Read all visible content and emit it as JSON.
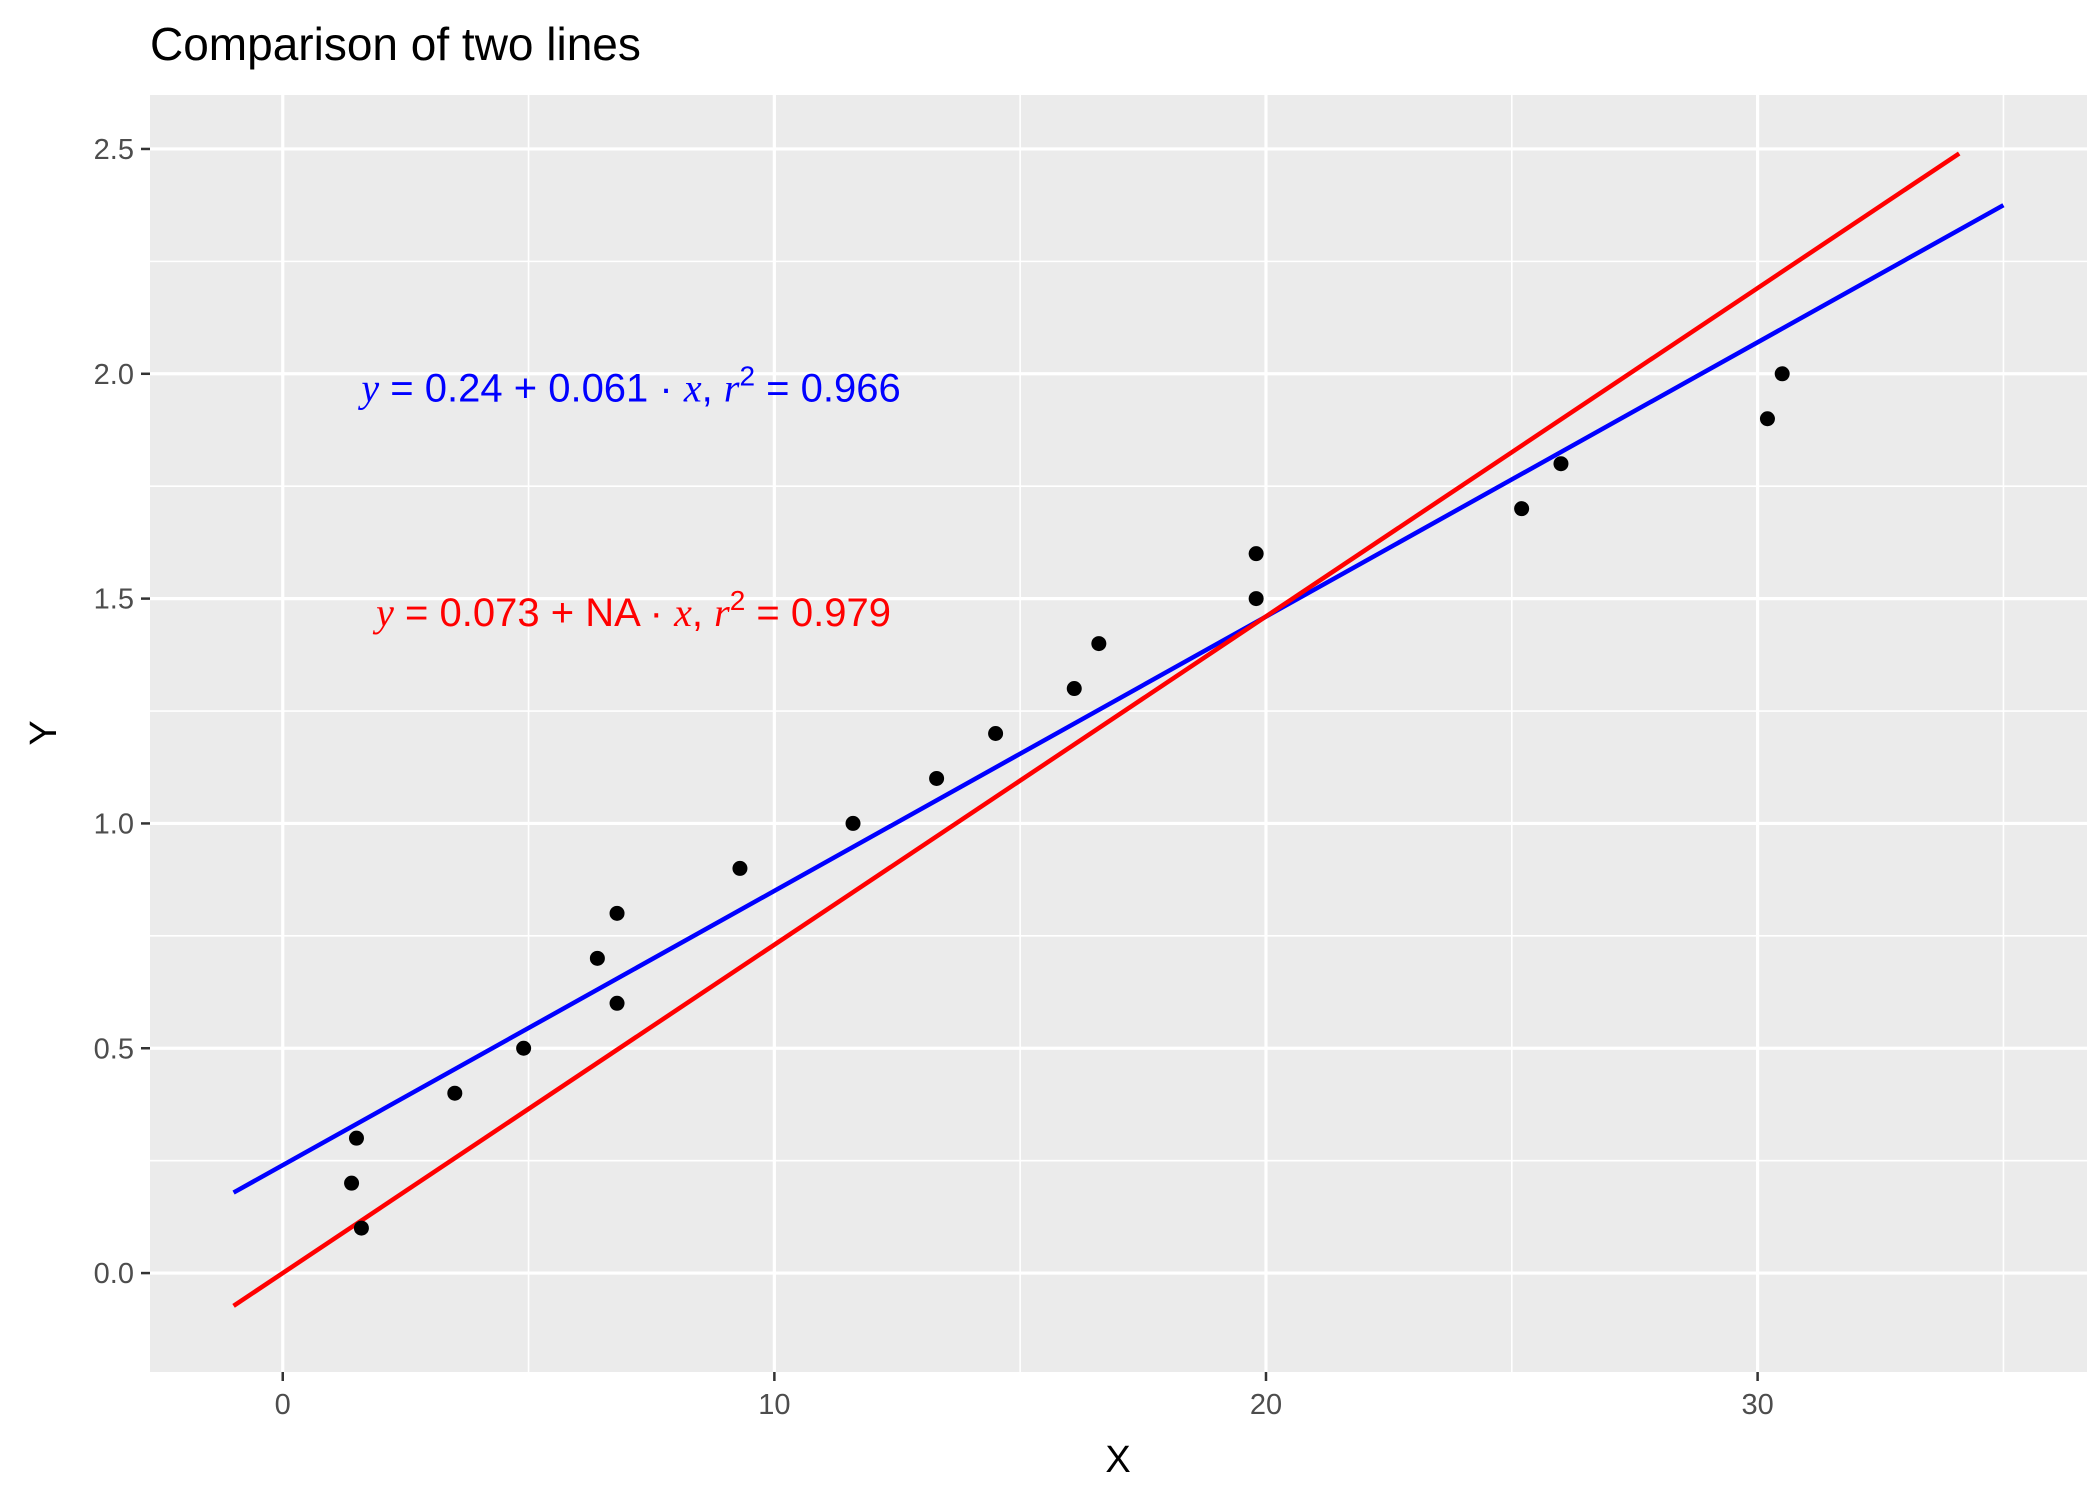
{
  "chart_data": {
    "type": "scatter",
    "title": "Comparison of two lines",
    "xlabel": "X",
    "ylabel": "Y",
    "xlim": [
      -2.7,
      36.7
    ],
    "ylim": [
      -0.22,
      2.62
    ],
    "x_ticks": [
      0,
      10,
      20,
      30
    ],
    "x_tick_labels": [
      "0",
      "10",
      "20",
      "30"
    ],
    "y_ticks": [
      0.0,
      0.5,
      1.0,
      1.5,
      2.0,
      2.5
    ],
    "y_tick_labels": [
      "0.0",
      "0.5",
      "1.0",
      "1.5",
      "2.0",
      "2.5"
    ],
    "grid": true,
    "panel_background": "#ebebeb",
    "grid_color": "#ffffff",
    "points": {
      "color": "#000000",
      "x": [
        1.4,
        1.5,
        1.6,
        3.5,
        4.9,
        6.4,
        6.8,
        6.8,
        9.3,
        11.6,
        13.3,
        14.5,
        16.1,
        16.6,
        19.8,
        19.8,
        25.2,
        26.0,
        30.2,
        30.5
      ],
      "y": [
        0.2,
        0.3,
        0.1,
        0.4,
        0.5,
        0.7,
        0.6,
        0.8,
        0.9,
        1.0,
        1.1,
        1.2,
        1.3,
        1.4,
        1.5,
        1.6,
        1.7,
        1.8,
        1.9,
        2.0
      ]
    },
    "series": [
      {
        "color": "#0000ff",
        "type": "line",
        "x": [
          -1.0,
          35.0
        ],
        "y": [
          0.179,
          2.375
        ]
      },
      {
        "color": "#ff0000",
        "type": "line",
        "x": [
          -1.0,
          34.1
        ],
        "y": [
          -0.073,
          2.49
        ]
      }
    ],
    "annotations": [
      {
        "color": "#0000ff",
        "x": 1.6,
        "y": 1.97,
        "y_sym": "y",
        "intercept": "0.24",
        "slope": "0.061",
        "x_sym": "x",
        "r_sym": "r",
        "r_exp": "2",
        "r2_value": "= 0.966"
      },
      {
        "color": "#ff0000",
        "x": 1.9,
        "y": 1.47,
        "y_sym": "y",
        "intercept": "0.073",
        "slope": "NA",
        "x_sym": "x",
        "r_sym": "r",
        "r_exp": "2",
        "r2_value": "= 0.979"
      }
    ],
    "equation_symbols": {
      "equals": "=",
      "plus": "+",
      "dot": "·",
      "comma": ","
    }
  }
}
